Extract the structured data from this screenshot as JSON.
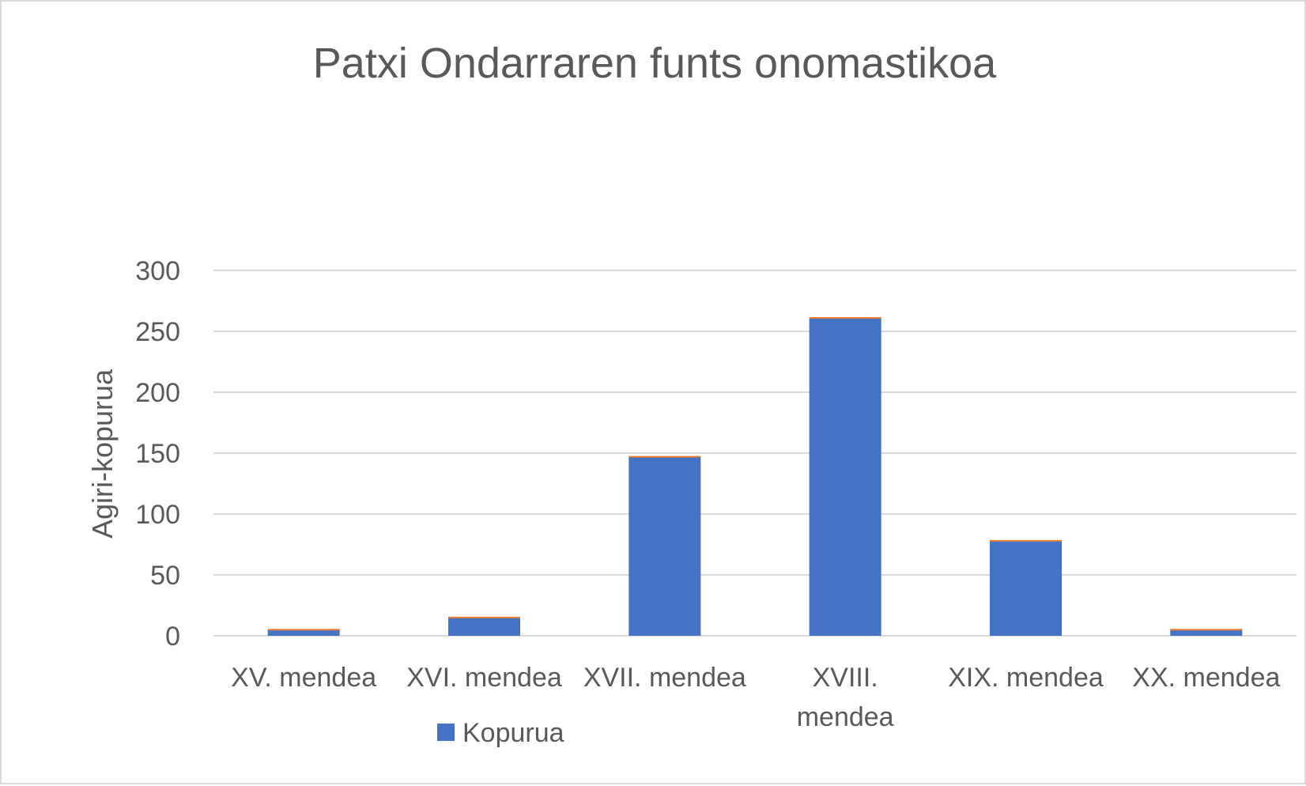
{
  "chart_data": {
    "type": "bar",
    "title": "Patxi Ondarraren funts onomastikoa",
    "xlabel": "",
    "ylabel": "Agiri-kopurua",
    "categories": [
      [
        "XV. mendea"
      ],
      [
        "XVI. mendea"
      ],
      [
        "XVII. mendea"
      ],
      [
        "XVIII.",
        "mendea"
      ],
      [
        "XIX. mendea"
      ],
      [
        "XX. mendea"
      ]
    ],
    "series": [
      {
        "name": "Kopurua",
        "color": "#4472c4",
        "values": [
          5,
          15,
          147,
          261,
          78,
          5
        ]
      }
    ],
    "bar_top_accent_color": "#ed7d31",
    "ylim": [
      0,
      300
    ],
    "yticks": [
      0,
      50,
      100,
      150,
      200,
      250,
      300
    ],
    "grid": true,
    "legend_position": "bottom-left"
  }
}
